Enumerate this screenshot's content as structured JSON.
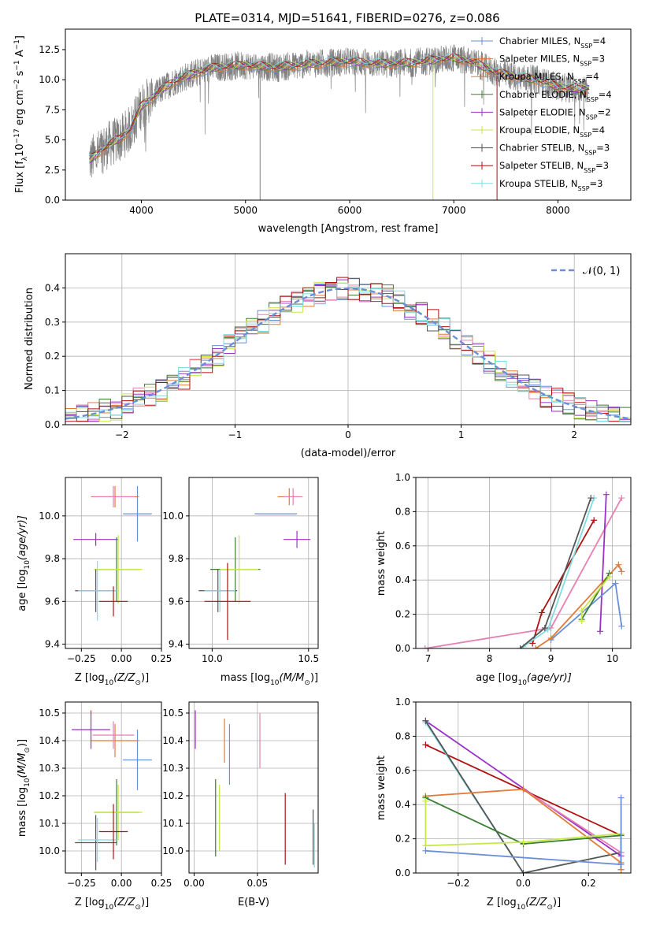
{
  "figure": {
    "title": "PLATE=0314, MJD=51641, FIBERID=0276, z=0.086"
  },
  "colors": {
    "chabrier_miles": "#6a8fd8",
    "salpeter_miles": "#e07b39",
    "kroupa_miles": "#e07b39",
    "chabrier_elodie": "#3a7d34",
    "salpeter_elodie": "#9b30c8",
    "kroupa_elodie": "#c6e84a",
    "chabrier_stelib": "#555555",
    "salpeter_stelib": "#b01010",
    "kroupa_stelib": "#7fdce0",
    "data": "#808080",
    "pink": "#e77fb3"
  },
  "chart_data": [
    {
      "type": "line",
      "panel": "spectrum",
      "xlabel": "wavelength [Angstrom, rest frame]",
      "ylabel_parts": [
        "Flux [f",
        "λ",
        "10",
        "−17",
        " erg cm",
        "−2",
        " s",
        "−1",
        " A",
        "−1",
        "]"
      ],
      "xlim": [
        3270,
        8700
      ],
      "ylim": [
        0,
        14.2
      ],
      "x_ticks": [
        4000,
        5000,
        6000,
        7000,
        8000
      ],
      "y_ticks": [
        0.0,
        2.5,
        5.0,
        7.5,
        10.0,
        12.5
      ],
      "x_tick_labels": [
        "4000",
        "5000",
        "6000",
        "7000",
        "8000"
      ],
      "y_tick_labels": [
        "0.0",
        "2.5",
        "5.0",
        "7.5",
        "10.0",
        "12.5"
      ],
      "continuum": {
        "x": [
          3500,
          3600,
          3700,
          3800,
          3900,
          4000,
          4100,
          4200,
          4300,
          4500,
          4700,
          5000,
          5300,
          5600,
          6000,
          6300,
          6600,
          6800,
          7000,
          7200,
          7400,
          7600,
          7800,
          8000,
          8200,
          8300
        ],
        "y": [
          3.3,
          4.0,
          4.7,
          5.1,
          6.0,
          7.8,
          8.5,
          9.2,
          9.8,
          10.5,
          11.0,
          11.2,
          11.0,
          11.3,
          11.5,
          11.3,
          11.4,
          11.6,
          11.8,
          11.4,
          10.6,
          10.2,
          10.0,
          9.4,
          9.2,
          9.3
        ]
      },
      "legend": [
        {
          "label": "Chabrier MILES, N",
          "sub": "SSP",
          "tail": "=4",
          "color_key": "chabrier_miles"
        },
        {
          "label": "Salpeter MILES, N",
          "sub": "SSP",
          "tail": "=3",
          "color_key": "salpeter_miles"
        },
        {
          "label": "Kroupa MILES, N",
          "sub": "SSP",
          "tail": "=4",
          "color_key": "kroupa_miles"
        },
        {
          "label": "Chabrier ELODIE, N",
          "sub": "SSP",
          "tail": "=4",
          "color_key": "chabrier_elodie"
        },
        {
          "label": "Salpeter ELODIE, N",
          "sub": "SSP",
          "tail": "=2",
          "color_key": "salpeter_elodie"
        },
        {
          "label": "Kroupa ELODIE, N",
          "sub": "SSP",
          "tail": "=4",
          "color_key": "kroupa_elodie"
        },
        {
          "label": "Chabrier STELIB, N",
          "sub": "SSP",
          "tail": "=3",
          "color_key": "chabrier_stelib"
        },
        {
          "label": "Salpeter STELIB, N",
          "sub": "SSP",
          "tail": "=3",
          "color_key": "salpeter_stelib"
        },
        {
          "label": "Kroupa STELIB, N",
          "sub": "SSP",
          "tail": "=3",
          "color_key": "kroupa_stelib"
        }
      ]
    },
    {
      "type": "line",
      "panel": "residual-histogram",
      "xlabel": "(data-model)/error",
      "ylabel": "Normed distribution",
      "xlim": [
        -2.5,
        2.5
      ],
      "ylim": [
        0,
        0.5
      ],
      "x_ticks": [
        -2,
        -1,
        0,
        1,
        2
      ],
      "x_tick_labels": [
        "−2",
        "−1",
        "0",
        "1",
        "2"
      ],
      "y_ticks": [
        0.0,
        0.1,
        0.2,
        0.3,
        0.4
      ],
      "y_tick_labels": [
        "0.0",
        "0.1",
        "0.2",
        "0.3",
        "0.4"
      ],
      "bin_width": 0.1,
      "legend": "𝒩(0, 1)"
    },
    {
      "type": "scatter",
      "panel": "age-vs-Z",
      "xlabel_parts": [
        "Z [log",
        "10",
        "(Z/Z",
        "⊙",
        ")]"
      ],
      "ylabel_parts": [
        "age  [log",
        "10",
        "(age/yr)]"
      ],
      "xlim": [
        -0.35,
        0.25
      ],
      "ylim": [
        9.38,
        10.18
      ],
      "x_ticks": [
        -0.25,
        0.0,
        0.25
      ],
      "x_tick_labels": [
        "−0.25",
        "0.00",
        "0.25"
      ],
      "y_ticks": [
        9.4,
        9.6,
        9.8,
        10.0
      ],
      "y_tick_labels": [
        "9.4",
        "9.6",
        "9.8",
        "10.0"
      ],
      "points": [
        {
          "key": "chabrier_miles",
          "x": 0.1,
          "y": 10.01,
          "xerr": 0.09,
          "yerr": 0.13
        },
        {
          "key": "salpeter_miles",
          "x": -0.04,
          "y": 10.09,
          "xerr": 0.15,
          "yerr": 0.05
        },
        {
          "key": "pink",
          "x": -0.05,
          "y": 10.09,
          "xerr": 0.13,
          "yerr": 0.05
        },
        {
          "key": "salpeter_elodie",
          "x": -0.16,
          "y": 9.89,
          "xerr": 0.14,
          "yerr": 0.03
        },
        {
          "key": "chabrier_elodie",
          "x": -0.03,
          "y": 9.75,
          "xerr": 0.14,
          "yerr": 0.15
        },
        {
          "key": "kroupa_elodie",
          "x": -0.02,
          "y": 9.75,
          "xerr": 0.15,
          "yerr": 0.16
        },
        {
          "key": "chabrier_stelib",
          "x": -0.16,
          "y": 9.65,
          "xerr": 0.13,
          "yerr": 0.1
        },
        {
          "key": "kroupa_stelib",
          "x": -0.15,
          "y": 9.65,
          "xerr": 0.12,
          "yerr": 0.14
        },
        {
          "key": "salpeter_stelib",
          "x": -0.05,
          "y": 9.6,
          "xerr": 0.09,
          "yerr": 0.07
        }
      ]
    },
    {
      "type": "scatter",
      "panel": "age-vs-mass",
      "xlabel_parts": [
        "mass [log",
        "10",
        "(M/M",
        "⊙",
        ")]"
      ],
      "xlim": [
        9.88,
        10.55
      ],
      "ylim": [
        9.38,
        10.18
      ],
      "x_ticks": [
        10.0,
        10.5
      ],
      "x_tick_labels": [
        "10.0",
        "10.5"
      ],
      "y_ticks": [
        9.4,
        9.6,
        9.8,
        10.0
      ],
      "y_tick_labels": [
        "9.4",
        "9.6",
        "9.8",
        "10.0"
      ],
      "points": [
        {
          "key": "chabrier_miles",
          "x": 10.33,
          "y": 10.01,
          "xerr": 0.11,
          "yerr": 0.0
        },
        {
          "key": "salpeter_miles",
          "x": 10.4,
          "y": 10.09,
          "xerr": 0.06,
          "yerr": 0.04
        },
        {
          "key": "pink",
          "x": 10.42,
          "y": 10.09,
          "xerr": 0.05,
          "yerr": 0.04
        },
        {
          "key": "salpeter_elodie",
          "x": 10.44,
          "y": 9.89,
          "xerr": 0.07,
          "yerr": 0.04
        },
        {
          "key": "chabrier_elodie",
          "x": 10.12,
          "y": 9.75,
          "xerr": 0.13,
          "yerr": 0.15
        },
        {
          "key": "kroupa_elodie",
          "x": 10.14,
          "y": 9.75,
          "xerr": 0.1,
          "yerr": 0.16
        },
        {
          "key": "chabrier_stelib",
          "x": 10.03,
          "y": 9.65,
          "xerr": 0.1,
          "yerr": 0.1
        },
        {
          "key": "kroupa_stelib",
          "x": 10.04,
          "y": 9.65,
          "xerr": 0.08,
          "yerr": 0.1
        },
        {
          "key": "salpeter_stelib",
          "x": 10.08,
          "y": 9.6,
          "xerr": 0.12,
          "yerr": 0.18
        }
      ]
    },
    {
      "type": "line",
      "panel": "mass-weight-vs-age",
      "xlabel_parts": [
        "age  [log",
        "10",
        "(age/yr)]"
      ],
      "ylabel": "mass weight",
      "xlim": [
        6.8,
        10.3
      ],
      "ylim": [
        0,
        1
      ],
      "x_ticks": [
        7,
        8,
        9,
        10
      ],
      "x_tick_labels": [
        "7",
        "8",
        "9",
        "10"
      ],
      "y_ticks": [
        0.0,
        0.2,
        0.4,
        0.6,
        0.8,
        1.0
      ],
      "y_tick_labels": [
        "0.0",
        "0.2",
        "0.4",
        "0.6",
        "0.8",
        "1.0"
      ],
      "series": [
        {
          "key": "pink",
          "x": [
            6.95,
            9.0,
            10.15
          ],
          "y": [
            0.0,
            0.12,
            0.88
          ]
        },
        {
          "key": "salpeter_stelib",
          "x": [
            8.7,
            8.85,
            9.7
          ],
          "y": [
            0.03,
            0.21,
            0.75
          ]
        },
        {
          "key": "kroupa_stelib",
          "x": [
            8.55,
            8.95,
            9.7
          ],
          "y": [
            0.01,
            0.11,
            0.88
          ]
        },
        {
          "key": "chabrier_stelib",
          "x": [
            8.5,
            8.9,
            9.65
          ],
          "y": [
            0.0,
            0.12,
            0.88
          ]
        },
        {
          "key": "salpeter_elodie",
          "x": [
            9.8,
            9.9
          ],
          "y": [
            0.1,
            0.9
          ]
        },
        {
          "key": "chabrier_miles",
          "x": [
            9.0,
            10.05,
            10.15
          ],
          "y": [
            0.05,
            0.38,
            0.13
          ]
        },
        {
          "key": "salpeter_miles",
          "x": [
            8.75,
            9.0,
            10.1,
            10.15
          ],
          "y": [
            0.0,
            0.06,
            0.49,
            0.45
          ]
        },
        {
          "key": "chabrier_elodie",
          "x": [
            9.5,
            9.95
          ],
          "y": [
            0.17,
            0.44
          ]
        },
        {
          "key": "kroupa_elodie",
          "x": [
            9.5,
            9.5,
            9.95
          ],
          "y": [
            0.16,
            0.22,
            0.42
          ]
        }
      ]
    },
    {
      "type": "scatter",
      "panel": "mass-vs-Z",
      "xlabel_parts": [
        "Z [log",
        "10",
        "(Z/Z",
        "⊙",
        ")]"
      ],
      "ylabel_parts": [
        "mass [log",
        "10",
        "(M/M",
        "⊙",
        ")]"
      ],
      "xlim": [
        -0.35,
        0.25
      ],
      "ylim": [
        9.92,
        10.54
      ],
      "x_ticks": [
        -0.25,
        0.0,
        0.25
      ],
      "x_tick_labels": [
        "−0.25",
        "0.00",
        "0.25"
      ],
      "y_ticks": [
        10.0,
        10.1,
        10.2,
        10.3,
        10.4,
        10.5
      ],
      "y_tick_labels": [
        "10.0",
        "10.1",
        "10.2",
        "10.3",
        "10.4",
        "10.5"
      ],
      "points": [
        {
          "key": "chabrier_miles",
          "x": 0.1,
          "y": 10.33,
          "xerr": 0.09,
          "yerr": 0.11
        },
        {
          "key": "salpeter_miles",
          "x": -0.04,
          "y": 10.4,
          "xerr": 0.15,
          "yerr": 0.06
        },
        {
          "key": "pink",
          "x": -0.05,
          "y": 10.42,
          "xerr": 0.13,
          "yerr": 0.05
        },
        {
          "key": "salpeter_elodie",
          "x": -0.19,
          "y": 10.44,
          "xerr": 0.12,
          "yerr": 0.07
        },
        {
          "key": "chabrier_elodie",
          "x": -0.03,
          "y": 10.14,
          "xerr": 0.14,
          "yerr": 0.12
        },
        {
          "key": "kroupa_elodie",
          "x": -0.02,
          "y": 10.14,
          "xerr": 0.15,
          "yerr": 0.1
        },
        {
          "key": "chabrier_stelib",
          "x": -0.16,
          "y": 10.03,
          "xerr": 0.13,
          "yerr": 0.1
        },
        {
          "key": "kroupa_stelib",
          "x": -0.15,
          "y": 10.04,
          "xerr": 0.12,
          "yerr": 0.08
        },
        {
          "key": "salpeter_stelib",
          "x": -0.05,
          "y": 10.07,
          "xerr": 0.09,
          "yerr": 0.1
        }
      ]
    },
    {
      "type": "scatter",
      "panel": "mass-vs-ebv",
      "xlabel": "E(B-V)",
      "xlim": [
        -0.004,
        0.098
      ],
      "ylim": [
        9.92,
        10.54
      ],
      "x_ticks": [
        0.0,
        0.05
      ],
      "x_tick_labels": [
        "0.00",
        "0.05"
      ],
      "y_ticks": [
        10.0,
        10.1,
        10.2,
        10.3,
        10.4,
        10.5
      ],
      "y_tick_labels": [
        "10.0",
        "10.1",
        "10.2",
        "10.3",
        "10.4",
        "10.5"
      ],
      "points": [
        {
          "key": "salpeter_elodie",
          "x": 0.001,
          "y": 10.44,
          "xerr": 0,
          "yerr": 0.07
        },
        {
          "key": "salpeter_miles",
          "x": 0.024,
          "y": 10.4,
          "xerr": 0,
          "yerr": 0.08
        },
        {
          "key": "chabrier_miles",
          "x": 0.028,
          "y": 10.35,
          "xerr": 0,
          "yerr": 0.11
        },
        {
          "key": "pink",
          "x": 0.052,
          "y": 10.4,
          "xerr": 0,
          "yerr": 0.1
        },
        {
          "key": "chabrier_elodie",
          "x": 0.017,
          "y": 10.12,
          "xerr": 0,
          "yerr": 0.14
        },
        {
          "key": "kroupa_elodie",
          "x": 0.02,
          "y": 10.12,
          "xerr": 0,
          "yerr": 0.12
        },
        {
          "key": "salpeter_stelib",
          "x": 0.072,
          "y": 10.08,
          "xerr": 0,
          "yerr": 0.13
        },
        {
          "key": "chabrier_stelib",
          "x": 0.094,
          "y": 10.05,
          "xerr": 0,
          "yerr": 0.1
        },
        {
          "key": "kroupa_stelib",
          "x": 0.095,
          "y": 10.02,
          "xerr": 0,
          "yerr": 0.08
        }
      ]
    },
    {
      "type": "line",
      "panel": "mass-weight-vs-Z",
      "xlabel_parts": [
        "Z [log",
        "10",
        "(Z/Z",
        "⊙",
        ")]"
      ],
      "ylabel": "mass weight",
      "xlim": [
        -0.33,
        0.33
      ],
      "ylim": [
        0,
        1
      ],
      "x_ticks": [
        -0.2,
        0.0,
        0.2
      ],
      "x_tick_labels": [
        "−0.2",
        "0.0",
        "0.2"
      ],
      "y_ticks": [
        0.0,
        0.2,
        0.4,
        0.6,
        0.8,
        1.0
      ],
      "y_tick_labels": [
        "0.0",
        "0.2",
        "0.4",
        "0.6",
        "0.8",
        "1.0"
      ],
      "series": [
        {
          "key": "salpeter_elodie",
          "x": [
            -0.3,
            0.3
          ],
          "y": [
            0.89,
            0.1
          ]
        },
        {
          "key": "salpeter_stelib",
          "x": [
            -0.3,
            0.3,
            0.3
          ],
          "y": [
            0.75,
            0.22,
            0.02
          ]
        },
        {
          "key": "kroupa_stelib",
          "x": [
            -0.3,
            0.0,
            0.3
          ],
          "y": [
            0.88,
            0.0,
            0.12
          ]
        },
        {
          "key": "chabrier_stelib",
          "x": [
            -0.3,
            0.0,
            0.3
          ],
          "y": [
            0.89,
            0.0,
            0.12
          ]
        },
        {
          "key": "pink",
          "x": [
            0.0,
            0.3
          ],
          "y": [
            0.49,
            0.12
          ]
        },
        {
          "key": "salpeter_miles",
          "x": [
            -0.3,
            0.0,
            0.3,
            0.3
          ],
          "y": [
            0.45,
            0.49,
            0.06,
            0.02
          ]
        },
        {
          "key": "chabrier_elodie",
          "x": [
            -0.3,
            0.0,
            0.3
          ],
          "y": [
            0.44,
            0.17,
            0.22
          ]
        },
        {
          "key": "kroupa_elodie",
          "x": [
            -0.3,
            -0.3,
            0.0,
            0.3
          ],
          "y": [
            0.42,
            0.16,
            0.18,
            0.23
          ]
        },
        {
          "key": "chabrier_miles",
          "x": [
            -0.3,
            0.3,
            0.3
          ],
          "y": [
            0.13,
            0.05,
            0.44
          ]
        }
      ]
    }
  ]
}
